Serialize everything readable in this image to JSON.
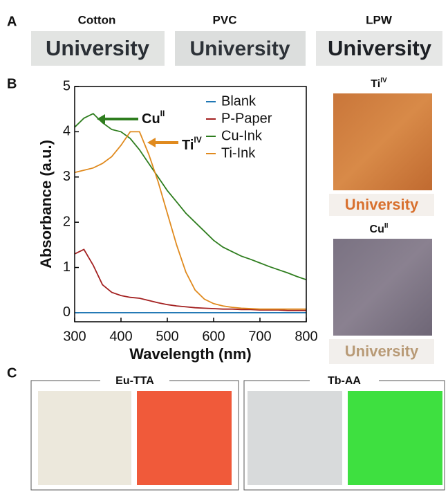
{
  "panels": {
    "a": {
      "label": "A",
      "samples": [
        {
          "name": "Cotton",
          "text": "University"
        },
        {
          "name": "PVC",
          "text": "University"
        },
        {
          "name": "LPW",
          "text": "University"
        }
      ]
    },
    "b": {
      "label": "B",
      "photos": [
        {
          "element": "Ti",
          "superscript": "IV",
          "text": "University"
        },
        {
          "element": "Cu",
          "superscript": "II",
          "text": "University"
        }
      ]
    },
    "c": {
      "label": "C",
      "groups": [
        "Eu-TTA",
        "Tb-AA"
      ]
    }
  },
  "chart_data": {
    "type": "line",
    "xlabel": "Wavelength (nm)",
    "ylabel": "Absorbance (a.u.)",
    "x": [
      300,
      320,
      340,
      360,
      380,
      400,
      420,
      440,
      460,
      480,
      500,
      520,
      540,
      560,
      580,
      600,
      620,
      640,
      660,
      680,
      700,
      720,
      740,
      760,
      780,
      800
    ],
    "series": [
      {
        "name": "Blank",
        "color": "#1f77b4",
        "values": [
          0,
          0,
          0,
          0,
          0,
          0,
          0,
          0,
          0,
          0,
          0,
          0,
          0,
          0,
          0,
          0,
          0,
          0,
          0,
          0,
          0,
          0,
          0,
          0,
          0,
          0
        ]
      },
      {
        "name": "P-Paper",
        "color": "#a32020",
        "values": [
          1.3,
          1.4,
          1.05,
          0.62,
          0.45,
          0.38,
          0.34,
          0.32,
          0.27,
          0.22,
          0.18,
          0.15,
          0.13,
          0.11,
          0.1,
          0.09,
          0.08,
          0.08,
          0.07,
          0.07,
          0.06,
          0.06,
          0.06,
          0.05,
          0.05,
          0.05
        ]
      },
      {
        "name": "Cu-Ink",
        "color": "#2e7d1e",
        "values": [
          4.1,
          4.3,
          4.4,
          4.2,
          4.05,
          4.0,
          3.85,
          3.6,
          3.3,
          3.0,
          2.7,
          2.45,
          2.2,
          2.0,
          1.8,
          1.6,
          1.45,
          1.35,
          1.25,
          1.18,
          1.1,
          1.02,
          0.95,
          0.88,
          0.8,
          0.73
        ]
      },
      {
        "name": "Ti-Ink",
        "color": "#e08a1e",
        "values": [
          3.1,
          3.15,
          3.2,
          3.3,
          3.45,
          3.7,
          4.0,
          4.0,
          3.5,
          2.9,
          2.2,
          1.5,
          0.9,
          0.5,
          0.3,
          0.2,
          0.15,
          0.12,
          0.1,
          0.09,
          0.08,
          0.08,
          0.08,
          0.08,
          0.08,
          0.08
        ]
      }
    ],
    "xlim": [
      300,
      800
    ],
    "ylim": [
      -0.2,
      5
    ],
    "xticks": [
      300,
      400,
      500,
      600,
      700,
      800
    ],
    "yticks": [
      0,
      1,
      2,
      3,
      4,
      5
    ],
    "annotations": [
      {
        "text": "Cu",
        "superscript": "II"
      },
      {
        "text": "Ti",
        "superscript": "IV"
      }
    ]
  }
}
